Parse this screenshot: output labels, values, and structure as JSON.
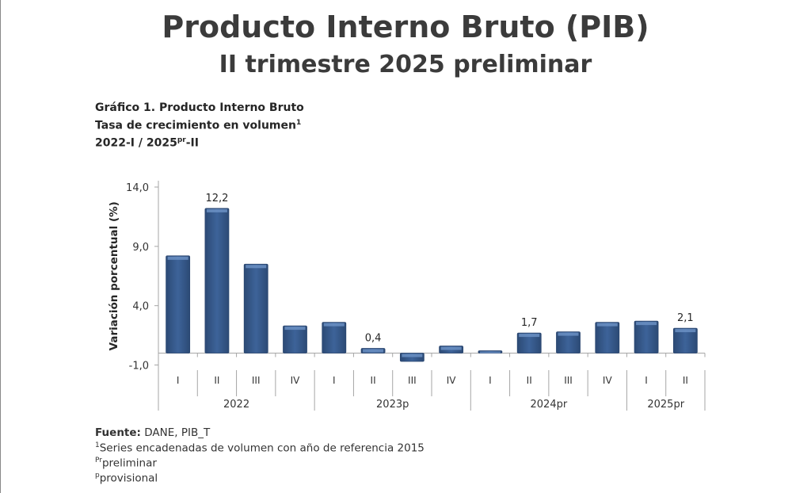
{
  "header": {
    "title": "Producto Interno Bruto (PIB)",
    "subtitle": "II trimestre 2025 preliminar"
  },
  "chart_header": {
    "line1": "Gráfico 1. Producto Interno Bruto",
    "line2": "Tasa de crecimiento en volumen",
    "line2_sup": "1",
    "line3_a": "2022-I / 2025",
    "line3_sup": "pr",
    "line3_b": "-II"
  },
  "chart_data": {
    "type": "bar",
    "title": "Gráfico 1. Producto Interno Bruto",
    "ylabel": "Variación porcentual (%)",
    "xlabel": "",
    "ylim": [
      -1,
      14
    ],
    "yticks": [
      "14,0",
      "9,0",
      "4,0",
      "-1,0"
    ],
    "ytick_values": [
      14,
      9,
      4,
      -1
    ],
    "categories": [
      "I",
      "II",
      "III",
      "IV",
      "I",
      "II",
      "III",
      "IV",
      "I",
      "II",
      "III",
      "IV",
      "I",
      "II"
    ],
    "groups": [
      {
        "label": "2022",
        "count": 4
      },
      {
        "label": "2023p",
        "count": 4
      },
      {
        "label": "2024pr",
        "count": 4
      },
      {
        "label": "2025pr",
        "count": 2
      }
    ],
    "values": [
      8.2,
      12.2,
      7.5,
      2.3,
      2.6,
      0.4,
      -0.7,
      0.6,
      0.2,
      1.7,
      1.8,
      2.6,
      2.7,
      2.1
    ],
    "data_labels": {
      "1": "12,2",
      "5": "0,4",
      "9": "1,7",
      "13": "2,1"
    },
    "color": "#3a5f92",
    "grid": false
  },
  "footer": {
    "source_label": "Fuente:",
    "source_value": " DANE, PIB_T",
    "note1_sup": "1",
    "note1": "Series encadenadas de volumen con año de referencia 2015",
    "note2_sup": "Pr",
    "note2": "preliminar",
    "note3_sup": "p",
    "note3": "provisional"
  }
}
